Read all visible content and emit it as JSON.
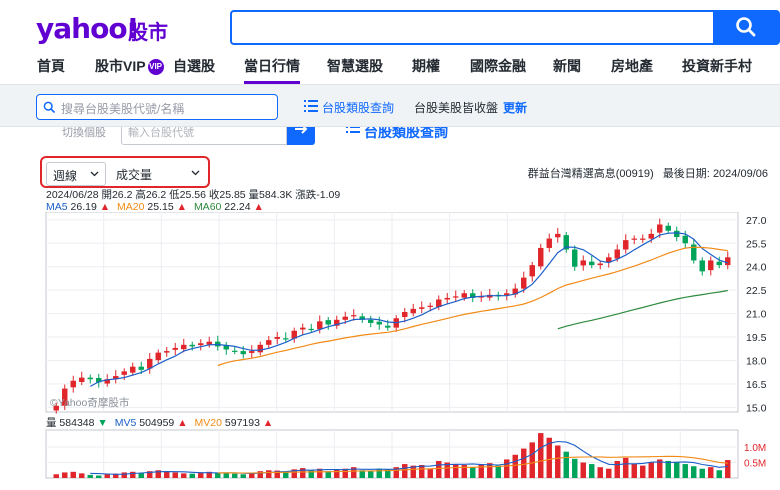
{
  "header": {
    "logo_text": "yahoo!",
    "logo_sub": "股市",
    "search_icon": "search-icon"
  },
  "nav": {
    "items": [
      {
        "label": "首頁"
      },
      {
        "label": "股市VIP"
      },
      {
        "label": "自選股"
      },
      {
        "label": "當日行情"
      },
      {
        "label": "智慧選股"
      },
      {
        "label": "期權"
      },
      {
        "label": "國際金融"
      },
      {
        "label": "新聞"
      },
      {
        "label": "房地產"
      },
      {
        "label": "投資新手村"
      }
    ],
    "vip_badge": "VIP"
  },
  "subbar": {
    "search_placeholder": "搜尋台股美股代號/名稱",
    "link1": "台股類股查詢",
    "link2": "台股美股皆收盤",
    "refresh": "更新"
  },
  "ghost_row": {
    "left": "切換個股",
    "input_placeholder": "輸入台股代號",
    "link": "台股類股查詢"
  },
  "toolbar": {
    "period": "週線",
    "indicator": "成交量",
    "stock_info": "群益台灣精選高息(00919)",
    "last_date_label": "最後日期:",
    "last_date": "2024/09/06"
  },
  "ohlc_text": "2024/06/28 開26.2 高26.2 低25.56 收25.85 量584.3K 漲跌-1.09",
  "ma": {
    "ma5_label": "MA5",
    "ma5_val": "26.19",
    "ma20_label": "MA20",
    "ma20_val": "25.15",
    "ma60_label": "MA60",
    "ma60_val": "22.24"
  },
  "vol_legend": {
    "vol_label": "量",
    "vol_val": "584348",
    "mv5_label": "MV5",
    "mv5_val": "504959",
    "mv20_label": "MV20",
    "mv20_val": "597193"
  },
  "watermark": "©Yahoo奇摩股市",
  "colors": {
    "up": "#e0262b",
    "down": "#00a35a",
    "ma5": "#1b5fc9",
    "ma20": "#f28a16",
    "ma60": "#2e8b3e",
    "brand": "#6001d2",
    "accent": "#0f69ff"
  },
  "chart_data": {
    "type": "candlestick",
    "price_ticks": [
      "27.0",
      "25.5",
      "24.0",
      "22.5",
      "21.0",
      "19.5",
      "18.0",
      "16.5",
      "15.0"
    ],
    "volume_ticks": [
      "1.0M",
      "0.5M"
    ],
    "ylim": [
      14.7,
      27.5
    ],
    "closes": [
      15.1,
      16.2,
      16.7,
      16.9,
      16.8,
      16.6,
      16.8,
      17.0,
      17.3,
      17.6,
      17.4,
      18.1,
      18.5,
      18.6,
      18.8,
      19.0,
      18.9,
      19.1,
      19.2,
      18.9,
      18.7,
      18.6,
      18.4,
      18.6,
      19.0,
      19.3,
      19.5,
      19.4,
      19.9,
      20.1,
      20.0,
      20.5,
      20.3,
      20.6,
      20.8,
      20.9,
      20.6,
      20.4,
      20.3,
      20.1,
      20.7,
      21.1,
      21.3,
      21.4,
      21.5,
      21.9,
      22.0,
      22.1,
      22.3,
      22.0,
      22.1,
      22.2,
      22.1,
      22.3,
      22.6,
      23.3,
      24.1,
      25.2,
      25.8,
      26.1,
      25.1,
      24.0,
      24.4,
      24.1,
      24.2,
      24.6,
      25.1,
      25.7,
      25.8,
      25.8,
      26.1,
      26.7,
      26.3,
      25.9,
      25.5,
      24.4,
      23.7,
      24.4,
      24.1,
      24.6
    ],
    "volumes": [
      0.12,
      0.18,
      0.2,
      0.15,
      0.1,
      0.08,
      0.12,
      0.14,
      0.18,
      0.2,
      0.16,
      0.22,
      0.25,
      0.2,
      0.18,
      0.15,
      0.14,
      0.18,
      0.2,
      0.16,
      0.15,
      0.14,
      0.12,
      0.16,
      0.22,
      0.25,
      0.24,
      0.18,
      0.28,
      0.32,
      0.24,
      0.3,
      0.22,
      0.28,
      0.3,
      0.35,
      0.25,
      0.22,
      0.3,
      0.28,
      0.35,
      0.45,
      0.4,
      0.42,
      0.3,
      0.55,
      0.5,
      0.45,
      0.42,
      0.35,
      0.45,
      0.48,
      0.4,
      0.6,
      0.75,
      0.95,
      1.15,
      1.45,
      1.3,
      1.05,
      0.85,
      0.62,
      0.5,
      0.45,
      0.35,
      0.3,
      0.55,
      0.65,
      0.45,
      0.4,
      0.5,
      0.6,
      0.55,
      0.5,
      0.45,
      0.38,
      0.3,
      0.35,
      0.25,
      0.58
    ]
  }
}
